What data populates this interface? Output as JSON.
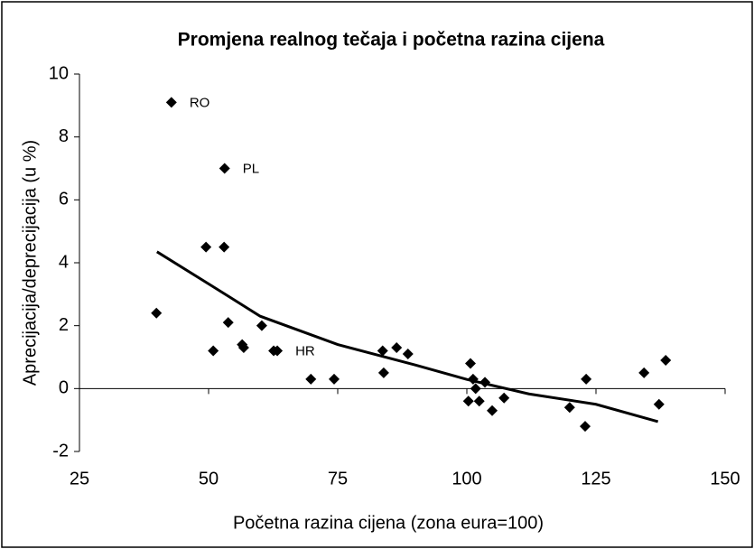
{
  "chart_data": {
    "type": "scatter",
    "title": "Promjena realnog tečaja i početna razina cijena",
    "x_label": "Početna razina cijena (zona eura=100)",
    "y_label": "Aprecijacija/deprecijacija (u %)",
    "xlim": [
      25,
      150
    ],
    "xticks": [
      25,
      50,
      75,
      100,
      125,
      150
    ],
    "ylim": [
      -2,
      10
    ],
    "yticks": [
      -2,
      0,
      2,
      4,
      6,
      8,
      10
    ],
    "color": "#000000",
    "x": [
      42.8,
      53.1,
      49.5,
      53,
      39.9,
      53.8,
      60.3,
      50.9,
      56.5,
      56.8,
      62.6,
      63.3,
      69.8,
      74.3,
      83.7,
      86.4,
      88.6,
      83.9,
      100.7,
      101.2,
      103.5,
      100.3,
      101.7,
      102.4,
      104.9,
      107.2,
      119.9,
      123.1,
      122.9,
      134.3,
      137.2,
      138.5
    ],
    "values": [
      9.1,
      7.0,
      4.5,
      4.5,
      2.4,
      2.1,
      2.0,
      1.2,
      1.4,
      1.3,
      1.2,
      1.2,
      0.3,
      0.3,
      1.2,
      1.3,
      1.1,
      0.5,
      0.8,
      0.3,
      0.2,
      -0.4,
      0,
      -0.4,
      -0.7,
      -0.3,
      -0.6,
      0.3,
      -1.2,
      0.5,
      -0.5,
      0.9
    ],
    "labels": [
      "RO",
      "PL",
      null,
      null,
      null,
      null,
      null,
      null,
      null,
      null,
      null,
      "HR",
      null,
      null,
      null,
      null,
      null,
      null,
      null,
      null,
      null,
      null,
      null,
      null,
      null,
      null,
      null,
      null,
      null,
      null,
      null,
      null
    ],
    "trendline": {
      "color": "#000000",
      "x": [
        40,
        50,
        60,
        75,
        90,
        100,
        112,
        125,
        137
      ],
      "values": [
        4.35,
        3.33,
        2.3,
        1.4,
        0.75,
        0.29,
        -0.17,
        -0.5,
        -1.05
      ]
    }
  }
}
